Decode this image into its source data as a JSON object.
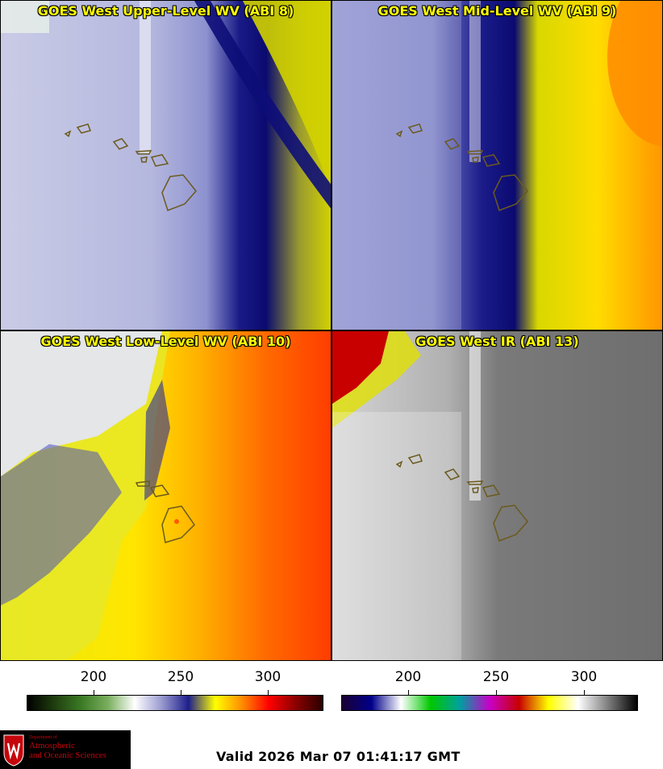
{
  "panels": [
    {
      "title": "GOES West Upper-Level WV (ABI 8)"
    },
    {
      "title": "GOES West Mid-Level WV (ABI 9)"
    },
    {
      "title": "GOES West Low-Level WV (ABI 10)"
    },
    {
      "title": "GOES West IR (ABI 13)"
    }
  ],
  "colorbars": [
    {
      "name": "wv",
      "ticks": [
        "200",
        "250",
        "300"
      ],
      "colors": [
        "#000000",
        "#1f3d0f",
        "#3b7a25",
        "#79ae5e",
        "#ffffff",
        "#9a9ad0",
        "#1e1e8c",
        "#ffff00",
        "#ff8c00",
        "#ff0000",
        "#8b0000",
        "#2a0000"
      ]
    },
    {
      "name": "ir",
      "ticks": [
        "200",
        "250",
        "300"
      ],
      "colors": [
        "#1a0033",
        "#00008b",
        "#ffffff",
        "#00c800",
        "#00a0a0",
        "#c800c8",
        "#c80000",
        "#ffff00",
        "#ffffff",
        "#808080",
        "#000000"
      ]
    }
  ],
  "logo": {
    "line1": "Department of",
    "line2": "Atmospheric",
    "line3": "and Oceanic Sciences"
  },
  "valid_time": "Valid 2026 Mar 07 01:41:17 GMT"
}
